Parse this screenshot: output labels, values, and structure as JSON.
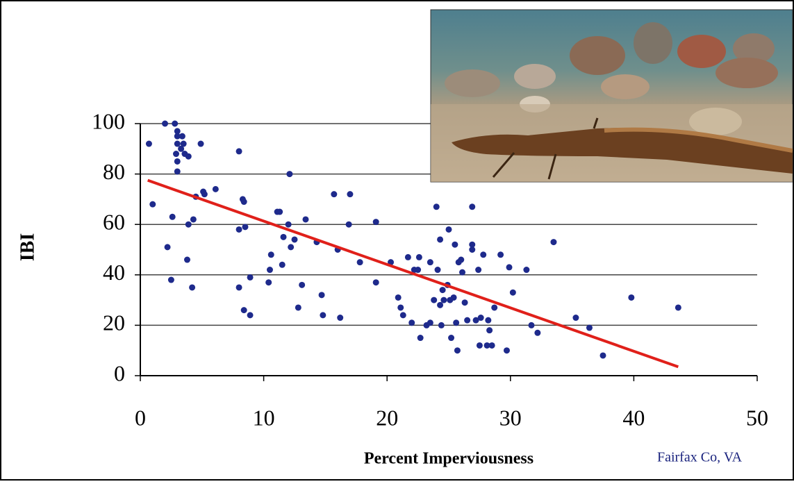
{
  "chart_data": {
    "type": "scatter",
    "ylabel": "IBI",
    "xlabel": "Percent Imperviousness",
    "annotation": "Fairfax Co, VA",
    "color": "#1e2a8c",
    "x": [
      0.7,
      1,
      2,
      2.2,
      2.5,
      2.6,
      2.8,
      3,
      3,
      3,
      2.9,
      3,
      3,
      3.3,
      3.5,
      3.6,
      3.4,
      3.9,
      3.8,
      3.9,
      4.2,
      4.3,
      4.5,
      4.9,
      5.1,
      5.2,
      6.1,
      8,
      8,
      8,
      8.3,
      8.4,
      8.4,
      8.5,
      8.9,
      8.9,
      10.4,
      10.5,
      10.6,
      11.1,
      11.3,
      11.5,
      11.6,
      12,
      12.1,
      12.2,
      12.5,
      12.8,
      13.1,
      13.4,
      14.3,
      14.7,
      14.8,
      15.7,
      16,
      16.2,
      16.9,
      17,
      17.8,
      19.1,
      19.1,
      20.3,
      20.9,
      21.1,
      21.3,
      21.7,
      22,
      22.2,
      22.5,
      22.6,
      22.7,
      23.2,
      23.5,
      23.5,
      23.8,
      24,
      24.1,
      24.3,
      24.3,
      24.4,
      24.5,
      24.6,
      24.9,
      25,
      25.1,
      25.2,
      25.4,
      25.5,
      25.6,
      25.7,
      25.8,
      26,
      26.1,
      26.3,
      26.5,
      26.9,
      26.9,
      26.9,
      27.2,
      27.4,
      27.5,
      27.6,
      27.8,
      28.1,
      28.2,
      28.3,
      28.5,
      28.7,
      29.2,
      29.7,
      29.9,
      30.2,
      31.3,
      31.7,
      32.2,
      33.5,
      35.3,
      36.4,
      37.5,
      39.8,
      43.6
    ],
    "values": [
      92,
      68,
      100,
      51,
      38,
      63,
      100,
      97,
      95,
      92,
      88,
      85,
      81,
      90,
      92,
      88,
      95,
      87,
      46,
      60,
      35,
      62,
      71,
      92,
      73,
      72,
      74,
      89,
      35,
      58,
      70,
      69,
      26,
      59,
      39,
      24,
      37,
      42,
      48,
      65,
      65,
      44,
      55,
      60,
      80,
      51,
      54,
      27,
      36,
      62,
      53,
      32,
      24,
      72,
      50,
      23,
      60,
      72,
      45,
      37,
      61,
      45,
      31,
      27,
      24,
      47,
      21,
      42,
      42,
      47,
      15,
      20,
      21,
      45,
      30,
      67,
      42,
      54,
      28,
      20,
      34,
      30,
      36,
      58,
      30,
      15,
      31,
      52,
      21,
      10,
      45,
      46,
      41,
      29,
      22,
      67,
      52,
      50,
      22,
      42,
      12,
      23,
      48,
      12,
      22,
      18,
      12,
      27,
      48,
      10,
      43,
      33,
      42,
      20,
      17,
      53,
      23,
      19,
      8,
      31,
      27
    ],
    "trendline": {
      "x": [
        0.6,
        43.6
      ],
      "values": [
        77.5,
        3.5
      ],
      "color": "#e0201a"
    },
    "xlim": [
      0,
      50
    ],
    "ylim": [
      0,
      100
    ],
    "xticks": [
      0,
      10,
      20,
      30,
      40,
      50
    ],
    "yticks": [
      0,
      20,
      40,
      60,
      80,
      100
    ],
    "grid": true
  }
}
